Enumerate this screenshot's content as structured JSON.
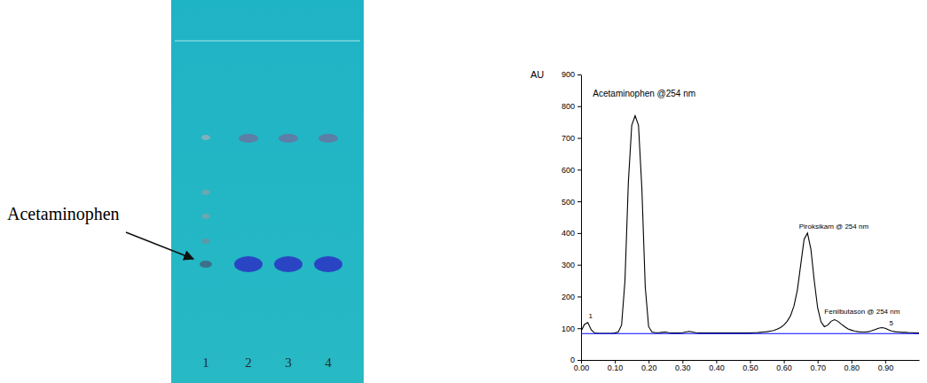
{
  "plate": {
    "label": "Acetaminophen",
    "lanes": [
      "1",
      "2",
      "3",
      "4"
    ]
  },
  "chart_data": {
    "type": "line",
    "ylabel": "AU",
    "x": [
      0,
      0.01,
      0.02,
      0.03,
      0.04,
      0.05,
      0.06,
      0.07,
      0.08,
      0.09,
      0.1,
      0.11,
      0.12,
      0.13,
      0.14,
      0.15,
      0.16,
      0.17,
      0.18,
      0.19,
      0.2,
      0.21,
      0.22,
      0.23,
      0.24,
      0.25,
      0.26,
      0.27,
      0.28,
      0.29,
      0.3,
      0.31,
      0.32,
      0.33,
      0.34,
      0.35,
      0.36,
      0.37,
      0.38,
      0.39,
      0.4,
      0.41,
      0.42,
      0.43,
      0.44,
      0.45,
      0.46,
      0.47,
      0.48,
      0.49,
      0.5,
      0.51,
      0.52,
      0.53,
      0.54,
      0.55,
      0.56,
      0.57,
      0.58,
      0.59,
      0.6,
      0.61,
      0.62,
      0.63,
      0.64,
      0.65,
      0.66,
      0.67,
      0.68,
      0.69,
      0.7,
      0.71,
      0.72,
      0.73,
      0.74,
      0.75,
      0.76,
      0.77,
      0.78,
      0.79,
      0.8,
      0.81,
      0.82,
      0.83,
      0.84,
      0.85,
      0.86,
      0.87,
      0.88,
      0.89,
      0.9,
      0.91,
      0.92,
      0.93,
      0.94,
      0.95,
      0.96,
      0.97,
      0.98,
      0.99,
      1
    ],
    "series": [
      {
        "color": "#000000",
        "values": [
          90,
          112,
          118,
          95,
          85,
          84,
          84,
          84,
          84,
          84,
          85,
          88,
          110,
          250,
          560,
          740,
          770,
          740,
          540,
          230,
          105,
          88,
          86,
          86,
          87,
          88,
          86,
          85,
          85,
          85,
          86,
          88,
          90,
          88,
          86,
          85,
          85,
          85,
          85,
          85,
          85,
          85,
          85,
          85,
          85,
          85,
          85,
          85,
          85,
          85,
          85,
          86,
          86,
          87,
          88,
          89,
          91,
          93,
          97,
          102,
          110,
          122,
          140,
          170,
          220,
          300,
          380,
          400,
          350,
          250,
          165,
          120,
          105,
          110,
          122,
          127,
          122,
          113,
          105,
          98,
          94,
          91,
          89,
          88,
          88,
          89,
          92,
          96,
          100,
          102,
          100,
          95,
          91,
          89,
          88,
          87,
          87,
          86,
          86,
          85,
          85
        ]
      },
      {
        "color": "#0000ff",
        "x": [
          0,
          1
        ],
        "values": [
          83,
          83
        ]
      }
    ],
    "xlim": [
      0,
      1
    ],
    "ylim": [
      0,
      900
    ],
    "xticks": [
      {
        "value": 0,
        "label": "0.00"
      },
      {
        "value": 0.1,
        "label": "0.10"
      },
      {
        "value": 0.2,
        "label": "0.20"
      },
      {
        "value": 0.3,
        "label": "0.30"
      },
      {
        "value": 0.4,
        "label": "0.40"
      },
      {
        "value": 0.5,
        "label": "0.50"
      },
      {
        "value": 0.6,
        "label": "0.60"
      },
      {
        "value": 0.7,
        "label": "0.70"
      },
      {
        "value": 0.8,
        "label": "0.80"
      },
      {
        "value": 0.9,
        "label": "0.90"
      }
    ],
    "yticks": [
      0,
      100,
      200,
      300,
      400,
      500,
      600,
      700,
      800,
      900
    ],
    "grid": false,
    "annotations": [
      {
        "text": "1",
        "x": 0.022,
        "y": 130
      },
      {
        "text": "Acetaminophen @254 nm",
        "x": 0.035,
        "y": 830
      },
      {
        "text": "Piroksikam @ 254 nm",
        "x": 0.645,
        "y": 415
      },
      {
        "text": "Fenilbutason @ 254 nm",
        "x": 0.72,
        "y": 145
      },
      {
        "text": "5",
        "x": 0.912,
        "y": 110
      }
    ]
  }
}
